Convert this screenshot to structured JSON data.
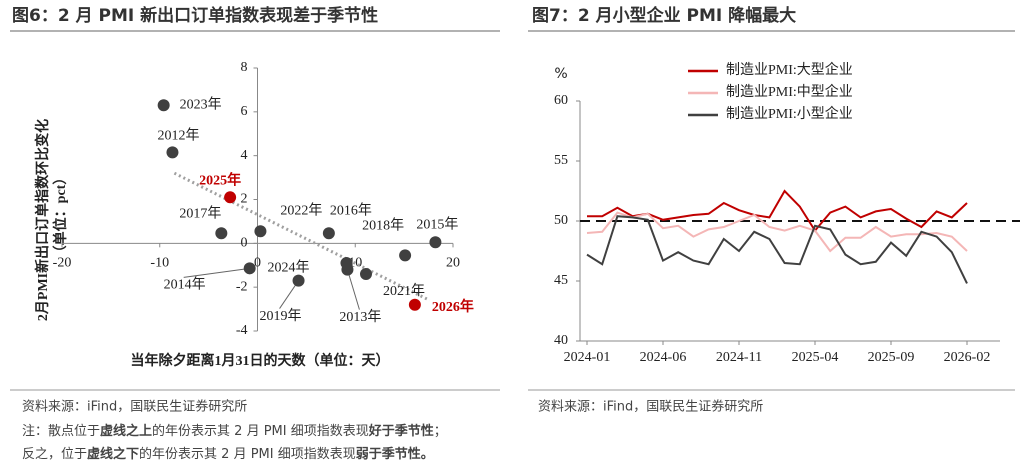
{
  "chart_data": [
    {
      "type": "scatter",
      "title": "图6：2 月 PMI 新出口订单指数表现差于季节性",
      "x_label": "当年除夕距离1月31日的天数（单位：天）",
      "y_label": [
        "2月PMI新出口订单指数环比变化",
        "（单位：pct）"
      ],
      "labels": [
        "2023年",
        "2012年",
        "2025年",
        "2017年",
        "2022年",
        "2016年",
        "2018年",
        "2015年",
        "2014年",
        "2024年",
        "2013年",
        "2021年",
        "2019年",
        "2026年"
      ],
      "x": [
        -9.6,
        -8.7,
        -2.8,
        -3.7,
        0.3,
        7.3,
        15.1,
        18.2,
        -0.8,
        9.1,
        9.2,
        11.1,
        4.2,
        16.1
      ],
      "y": [
        6.3,
        4.15,
        2.1,
        0.46,
        0.55,
        0.46,
        -0.55,
        0.05,
        -1.14,
        -0.9,
        -1.2,
        -1.4,
        -1.7,
        -2.8
      ],
      "colors": [
        "#404040",
        "#404040",
        "#c00000",
        "#404040",
        "#404040",
        "#404040",
        "#404040",
        "#404040",
        "#404040",
        "#404040",
        "#404040",
        "#404040",
        "#404040",
        "#c00000"
      ],
      "trend_line": {
        "x": [
          -8.5,
          17.6
        ],
        "y": [
          3.2,
          -2.6
        ],
        "color": "#a0a0a0"
      },
      "xlim": [
        -20,
        20
      ],
      "xticks": [
        -20,
        -10,
        0,
        10,
        20
      ],
      "ylim": [
        -4,
        8
      ],
      "yticks": [
        -4,
        -2,
        0,
        2,
        4,
        6,
        8
      ],
      "source": "资料来源：iFind，国联民生证券研究所",
      "note": [
        [
          {
            "text": "注：散点位于",
            "bold": false
          },
          {
            "text": "虚线之上",
            "bold": true
          },
          {
            "text": "的年份表示其 2 月 PMI 细项指数表现",
            "bold": false
          },
          {
            "text": "好于季节性",
            "bold": true
          },
          {
            "text": "；",
            "bold": false
          }
        ],
        [
          {
            "text": "反之，位于",
            "bold": false
          },
          {
            "text": "虚线之下",
            "bold": true
          },
          {
            "text": "的年份表示其 2 月 PMI 细项指数表现",
            "bold": false
          },
          {
            "text": "弱于季节性。",
            "bold": true
          }
        ]
      ]
    },
    {
      "type": "line",
      "title": "图7：2 月小型企业 PMI 降幅最大",
      "y_unit": "%",
      "categories": [
        "2024-01",
        null,
        null,
        null,
        null,
        "2024-06",
        null,
        null,
        null,
        null,
        "2024-11",
        null,
        null,
        null,
        null,
        "2025-04",
        null,
        null,
        null,
        null,
        "2025-09",
        null,
        null,
        null,
        null,
        "2026-02"
      ],
      "series": [
        {
          "name": "制造业PMI:大型企业",
          "color": "#c00000",
          "values": [
            50.4,
            50.4,
            51.1,
            50.4,
            50.6,
            50.1,
            50.3,
            50.5,
            50.6,
            51.5,
            50.9,
            50.5,
            50.3,
            52.5,
            51.2,
            49.2,
            50.7,
            51.2,
            50.3,
            50.8,
            51.0,
            50.2,
            49.5,
            50.8,
            50.3,
            51.5
          ]
        },
        {
          "name": "制造业PMI:中型企业",
          "color": "#f4b6b6",
          "values": [
            49.0,
            49.1,
            50.7,
            50.3,
            50.6,
            49.4,
            49.6,
            48.7,
            49.3,
            49.5,
            50.0,
            50.5,
            49.5,
            49.2,
            49.6,
            49.2,
            47.5,
            48.6,
            48.6,
            49.5,
            48.7,
            48.9,
            48.9,
            49.0,
            48.7,
            47.5
          ]
        },
        {
          "name": "制造业PMI:小型企业",
          "color": "#404040",
          "values": [
            47.2,
            46.4,
            50.4,
            50.3,
            50.1,
            46.7,
            47.4,
            46.7,
            46.4,
            48.5,
            47.5,
            49.1,
            48.5,
            46.5,
            46.4,
            49.6,
            49.3,
            47.2,
            46.4,
            46.6,
            48.2,
            47.1,
            49.1,
            48.7,
            47.4,
            44.8
          ]
        }
      ],
      "reference_line": 50,
      "ylim": [
        40,
        60
      ],
      "yticks": [
        40,
        45,
        50,
        55,
        60
      ],
      "source": "资料来源：iFind，国联民生证券研究所"
    }
  ]
}
